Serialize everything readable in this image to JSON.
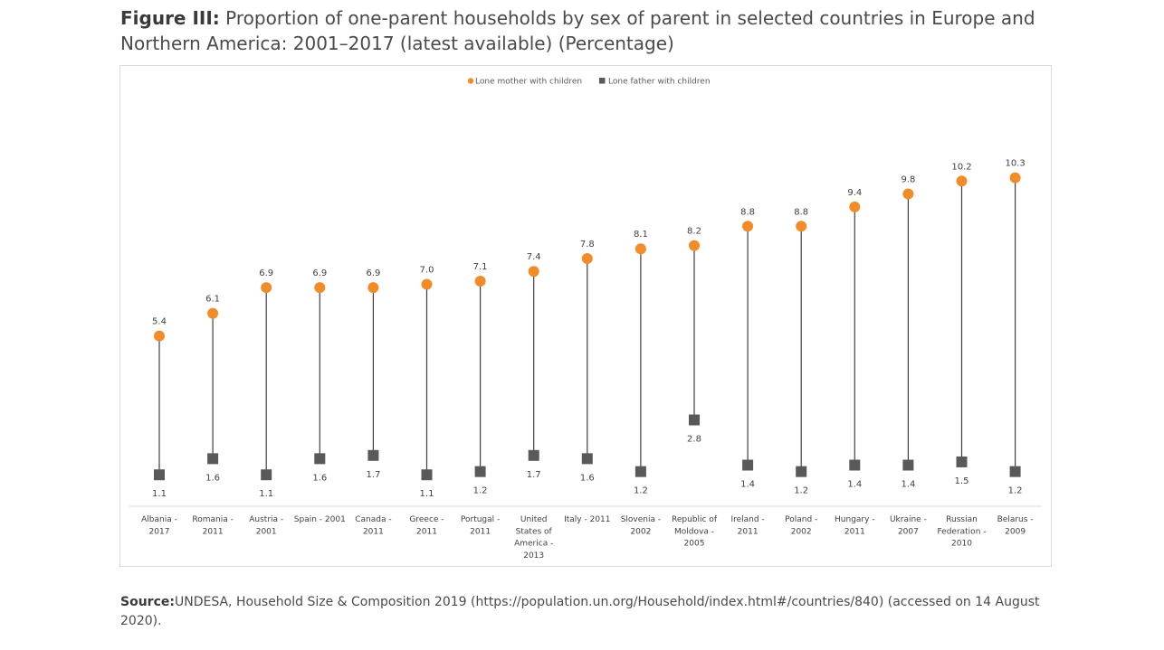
{
  "figure": {
    "label": "Figure III:",
    "title": "Proportion of one-parent households by sex of parent in selected countries in Europe and Northern America: 2001–2017 (latest available) (Percentage)"
  },
  "source": {
    "label": "Source:",
    "text": "UNDESA, Household Size & Composition 2019 (https://population.un.org/Household/index.html#/countries/840) (accessed on 14 August 2020)."
  },
  "chart_data": {
    "type": "scatter",
    "subtype": "dumbbell",
    "legend_position": "top-center",
    "grid": false,
    "ylim": [
      0,
      11
    ],
    "categories": [
      [
        "Albania -",
        "2017"
      ],
      [
        "Romania -",
        "2011"
      ],
      [
        "Austria -",
        "2001"
      ],
      [
        "Spain - 2001"
      ],
      [
        "Canada -",
        "2011"
      ],
      [
        "Greece -",
        "2011"
      ],
      [
        "Portugal -",
        "2011"
      ],
      [
        "United",
        "States of",
        "America -",
        "2013"
      ],
      [
        "Italy - 2011"
      ],
      [
        "Slovenia -",
        "2002"
      ],
      [
        "Republic of",
        "Moldova -",
        "2005"
      ],
      [
        "Ireland -",
        "2011"
      ],
      [
        "Poland -",
        "2002"
      ],
      [
        "Hungary -",
        "2011"
      ],
      [
        "Ukraine -",
        "2007"
      ],
      [
        "Russian",
        "Federation -",
        "2010"
      ],
      [
        "Belarus -",
        "2009"
      ]
    ],
    "series": [
      {
        "name": "Lone mother with children",
        "marker": "circle",
        "color": "#F28C28",
        "values": [
          5.4,
          6.1,
          6.9,
          6.9,
          6.9,
          7.0,
          7.1,
          7.4,
          7.8,
          8.1,
          8.2,
          8.8,
          8.8,
          9.4,
          9.8,
          10.2,
          10.3
        ],
        "labels": [
          "5.4",
          "6.1",
          "6.9",
          "6.9",
          "6.9",
          "7.0",
          "7.1",
          "7.4",
          "7.8",
          "8.1",
          "8.2",
          "8.8",
          "8.8",
          "9.4",
          "9.8",
          "10.2",
          "10.3"
        ]
      },
      {
        "name": "Lone father with children",
        "marker": "square",
        "color": "#595959",
        "values": [
          1.1,
          1.6,
          1.1,
          1.6,
          1.7,
          1.1,
          1.2,
          1.7,
          1.6,
          1.2,
          2.8,
          1.4,
          1.2,
          1.4,
          1.4,
          1.5,
          1.2
        ],
        "labels": [
          "1.1",
          "1.6",
          "1.1",
          "1.6",
          "1.7",
          "1.1",
          "1.2",
          "1.7",
          "1.6",
          "1.2",
          "2.8",
          "1.4",
          "1.2",
          "1.4",
          "1.4",
          "1.5",
          "1.2"
        ]
      }
    ],
    "connector_color": "#404040",
    "axis_color": "#d9d9d9"
  }
}
